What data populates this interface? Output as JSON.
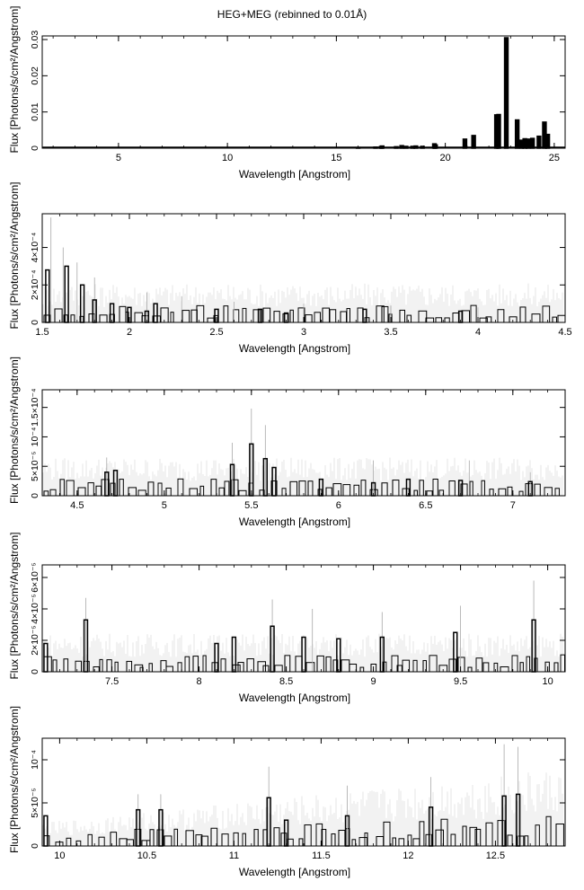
{
  "page": {
    "title": "HEG+MEG (rebinned to 0.01Å)"
  },
  "chart_data": [
    {
      "type": "bar",
      "style": "histogram-step-with-error-bars",
      "xlabel": "Wavelength [Angstrom]",
      "ylabel": "Flux [Photons/s/cm²/Angstrom]",
      "xlim": [
        1.5,
        25.5
      ],
      "ylim": [
        0,
        0.031
      ],
      "xticks": [
        {
          "value": 5,
          "label": "5"
        },
        {
          "value": 10,
          "label": "10"
        },
        {
          "value": 15,
          "label": "15"
        },
        {
          "value": 20,
          "label": "20"
        },
        {
          "value": 25,
          "label": "25"
        }
      ],
      "yticks": [
        {
          "value": 0,
          "label": "0"
        },
        {
          "value": 0.01,
          "label": "0.01"
        },
        {
          "value": 0.02,
          "label": "0.02"
        },
        {
          "value": 0.03,
          "label": "0.03"
        }
      ],
      "bars": [
        {
          "x": 16.0,
          "y": 0.0002
        },
        {
          "x": 16.8,
          "y": 0.0003
        },
        {
          "x": 17.05,
          "y": 0.0004
        },
        {
          "x": 17.1,
          "y": 0.0006
        },
        {
          "x": 17.75,
          "y": 0.0004
        },
        {
          "x": 18.0,
          "y": 0.0007
        },
        {
          "x": 18.2,
          "y": 0.0005
        },
        {
          "x": 18.5,
          "y": 0.0005
        },
        {
          "x": 18.65,
          "y": 0.0006
        },
        {
          "x": 18.95,
          "y": 0.0005
        },
        {
          "x": 19.5,
          "y": 0.0012
        },
        {
          "x": 19.55,
          "y": 0.0009
        },
        {
          "x": 20.9,
          "y": 0.0025
        },
        {
          "x": 21.3,
          "y": 0.0035
        },
        {
          "x": 22.35,
          "y": 0.0092
        },
        {
          "x": 22.45,
          "y": 0.0093
        },
        {
          "x": 22.8,
          "y": 0.0305
        },
        {
          "x": 23.3,
          "y": 0.0078
        },
        {
          "x": 23.5,
          "y": 0.0022
        },
        {
          "x": 23.65,
          "y": 0.0026
        },
        {
          "x": 23.8,
          "y": 0.0025
        },
        {
          "x": 24.0,
          "y": 0.0027
        },
        {
          "x": 24.3,
          "y": 0.0033
        },
        {
          "x": 24.55,
          "y": 0.0072
        },
        {
          "x": 24.7,
          "y": 0.0038
        }
      ],
      "errors": []
    },
    {
      "type": "bar",
      "style": "histogram-step-with-error-bars",
      "xlabel": "Wavelength [Angstrom]",
      "ylabel": "Flux [Photons/s/cm²/Angstrom]",
      "xlim": [
        1.5,
        4.5
      ],
      "ylim": [
        0,
        0.00058
      ],
      "xticks": [
        {
          "value": 1.5,
          "label": "1.5"
        },
        {
          "value": 2,
          "label": "2"
        },
        {
          "value": 2.5,
          "label": "2.5"
        },
        {
          "value": 3,
          "label": "3"
        },
        {
          "value": 3.5,
          "label": "3.5"
        },
        {
          "value": 4,
          "label": "4"
        },
        {
          "value": 4.5,
          "label": "4.5"
        }
      ],
      "yticks": [
        {
          "value": 0,
          "label": "0"
        },
        {
          "value": 0.0002,
          "label": "2×10⁻⁴"
        },
        {
          "value": 0.0004,
          "label": "4×10⁻⁴"
        }
      ],
      "bars": [
        {
          "x": 1.53,
          "y": 0.00028
        },
        {
          "x": 1.64,
          "y": 0.0003
        },
        {
          "x": 1.73,
          "y": 0.0002
        },
        {
          "x": 1.8,
          "y": 0.00012
        },
        {
          "x": 1.9,
          "y": 0.0001
        },
        {
          "x": 2.0,
          "y": 8e-05
        },
        {
          "x": 2.1,
          "y": 6e-05
        },
        {
          "x": 2.15,
          "y": 0.0001
        },
        {
          "x": 2.5,
          "y": 7e-05
        },
        {
          "x": 2.75,
          "y": 7e-05
        },
        {
          "x": 2.9,
          "y": 5e-05
        },
        {
          "x": 3.35,
          "y": 7e-05
        },
        {
          "x": 3.9,
          "y": 6e-05
        }
      ],
      "errors": [
        {
          "x": 1.55,
          "y": 0.00056
        },
        {
          "x": 1.62,
          "y": 0.0004
        },
        {
          "x": 1.7,
          "y": 0.00032
        },
        {
          "x": 1.8,
          "y": 0.00024
        },
        {
          "x": 2.1,
          "y": 0.00016
        },
        {
          "x": 2.3,
          "y": 0.00014
        },
        {
          "x": 2.6,
          "y": 0.00011
        },
        {
          "x": 3.0,
          "y": 0.0001
        },
        {
          "x": 3.5,
          "y": 9e-05
        },
        {
          "x": 4.0,
          "y": 8e-05
        }
      ]
    },
    {
      "type": "bar",
      "style": "histogram-step-with-error-bars",
      "xlabel": "Wavelength [Angstrom]",
      "ylabel": "Flux [Photons/s/cm²/Angstrom]",
      "xlim": [
        4.3,
        7.3
      ],
      "ylim": [
        0,
        0.00018
      ],
      "xticks": [
        {
          "value": 4.5,
          "label": "4.5"
        },
        {
          "value": 5,
          "label": "5"
        },
        {
          "value": 5.5,
          "label": "5.5"
        },
        {
          "value": 6,
          "label": "6"
        },
        {
          "value": 6.5,
          "label": "6.5"
        },
        {
          "value": 7,
          "label": "7"
        }
      ],
      "yticks": [
        {
          "value": 0,
          "label": "0"
        },
        {
          "value": 5e-05,
          "label": "5×10⁻⁵"
        },
        {
          "value": 0.0001,
          "label": "10⁻⁴"
        },
        {
          "value": 0.00015,
          "label": "1.5×10⁻⁴"
        }
      ],
      "bars": [
        {
          "x": 4.67,
          "y": 4e-05
        },
        {
          "x": 4.72,
          "y": 4.3e-05
        },
        {
          "x": 5.39,
          "y": 5.3e-05
        },
        {
          "x": 5.5,
          "y": 8.8e-05
        },
        {
          "x": 5.58,
          "y": 6.3e-05
        },
        {
          "x": 5.63,
          "y": 4.8e-05
        },
        {
          "x": 5.9,
          "y": 2.8e-05
        },
        {
          "x": 6.2,
          "y": 2.2e-05
        },
        {
          "x": 6.4,
          "y": 2.8e-05
        },
        {
          "x": 6.7,
          "y": 2.6e-05
        },
        {
          "x": 7.1,
          "y": 2.4e-05
        }
      ],
      "errors": [
        {
          "x": 4.67,
          "y": 6.5e-05
        },
        {
          "x": 5.39,
          "y": 9e-05
        },
        {
          "x": 5.5,
          "y": 0.000148
        },
        {
          "x": 5.58,
          "y": 0.00012
        },
        {
          "x": 6.2,
          "y": 6e-05
        },
        {
          "x": 6.75,
          "y": 6e-05
        },
        {
          "x": 7.1,
          "y": 4e-05
        }
      ]
    },
    {
      "type": "bar",
      "style": "histogram-step-with-error-bars",
      "xlabel": "Wavelength [Angstrom]",
      "ylabel": "Flux [Photons/s/cm²/Angstrom]",
      "xlim": [
        7.1,
        10.1
      ],
      "ylim": [
        0,
        6.8e-05
      ],
      "xticks": [
        {
          "value": 7.5,
          "label": "7.5"
        },
        {
          "value": 8,
          "label": "8"
        },
        {
          "value": 8.5,
          "label": "8.5"
        },
        {
          "value": 9,
          "label": "9"
        },
        {
          "value": 9.5,
          "label": "9.5"
        },
        {
          "value": 10,
          "label": "10"
        }
      ],
      "yticks": [
        {
          "value": 0,
          "label": "0"
        },
        {
          "value": 2e-05,
          "label": "2×10⁻⁵"
        },
        {
          "value": 4e-05,
          "label": "4×10⁻⁵"
        },
        {
          "value": 6e-05,
          "label": "6×10⁻⁵"
        }
      ],
      "bars": [
        {
          "x": 7.12,
          "y": 1.8e-05
        },
        {
          "x": 7.35,
          "y": 3.3e-05
        },
        {
          "x": 8.1,
          "y": 1.8e-05
        },
        {
          "x": 8.2,
          "y": 2.2e-05
        },
        {
          "x": 8.42,
          "y": 2.9e-05
        },
        {
          "x": 8.6,
          "y": 2.2e-05
        },
        {
          "x": 8.8,
          "y": 2.1e-05
        },
        {
          "x": 9.05,
          "y": 2.2e-05
        },
        {
          "x": 9.47,
          "y": 2.5e-05
        },
        {
          "x": 9.92,
          "y": 3.3e-05
        }
      ],
      "errors": [
        {
          "x": 7.35,
          "y": 4.7e-05
        },
        {
          "x": 8.42,
          "y": 4.6e-05
        },
        {
          "x": 8.65,
          "y": 4e-05
        },
        {
          "x": 9.05,
          "y": 3.8e-05
        },
        {
          "x": 9.5,
          "y": 4.2e-05
        },
        {
          "x": 9.92,
          "y": 5.8e-05
        }
      ]
    },
    {
      "type": "bar",
      "style": "histogram-step-with-error-bars",
      "xlabel": "Wavelength [Angstrom]",
      "ylabel": "Flux [Photons/s/cm²/Angstrom]",
      "xlim": [
        9.9,
        12.9
      ],
      "ylim": [
        0,
        0.000125
      ],
      "xticks": [
        {
          "value": 10,
          "label": "10"
        },
        {
          "value": 10.5,
          "label": "10.5"
        },
        {
          "value": 11,
          "label": "11"
        },
        {
          "value": 11.5,
          "label": "11.5"
        },
        {
          "value": 12,
          "label": "12"
        },
        {
          "value": 12.5,
          "label": "12.5"
        }
      ],
      "yticks": [
        {
          "value": 0,
          "label": "0"
        },
        {
          "value": 5e-05,
          "label": "5×10⁻⁵"
        },
        {
          "value": 0.0001,
          "label": "10⁻⁴"
        }
      ],
      "bars": [
        {
          "x": 9.92,
          "y": 3.5e-05
        },
        {
          "x": 10.45,
          "y": 4.2e-05
        },
        {
          "x": 10.58,
          "y": 4.2e-05
        },
        {
          "x": 11.2,
          "y": 5.6e-05
        },
        {
          "x": 11.3,
          "y": 3e-05
        },
        {
          "x": 11.65,
          "y": 3.5e-05
        },
        {
          "x": 12.13,
          "y": 4.5e-05
        },
        {
          "x": 12.55,
          "y": 5.8e-05
        },
        {
          "x": 12.63,
          "y": 6e-05
        }
      ],
      "errors": [
        {
          "x": 10.45,
          "y": 6e-05
        },
        {
          "x": 10.58,
          "y": 6e-05
        },
        {
          "x": 11.2,
          "y": 9.2e-05
        },
        {
          "x": 11.65,
          "y": 7e-05
        },
        {
          "x": 12.13,
          "y": 8e-05
        },
        {
          "x": 12.55,
          "y": 0.000118
        },
        {
          "x": 12.63,
          "y": 0.000115
        }
      ]
    }
  ]
}
